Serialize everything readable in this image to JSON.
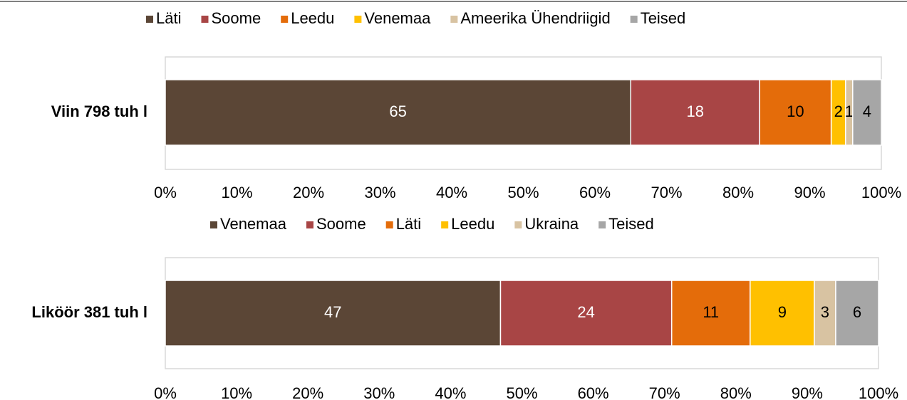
{
  "chart_data": [
    {
      "type": "stacked_barh",
      "categories": [
        "Viin 798 tuh l"
      ],
      "series": [
        {
          "name": "Läti",
          "color": "#5b4636",
          "values": [
            65
          ]
        },
        {
          "name": "Soome",
          "color": "#a84545",
          "values": [
            18
          ]
        },
        {
          "name": "Leedu",
          "color": "#e46c0a",
          "values": [
            10
          ]
        },
        {
          "name": "Venemaa",
          "color": "#ffc000",
          "values": [
            2
          ]
        },
        {
          "name": "Ameerika Ühendriigid",
          "color": "#d8c3a2",
          "values": [
            1
          ]
        },
        {
          "name": "Teised",
          "color": "#a6a6a6",
          "values": [
            4
          ]
        }
      ],
      "xlim": [
        0,
        100
      ],
      "xticks": [
        {
          "value": 0,
          "label": "0%"
        },
        {
          "value": 10,
          "label": "10%"
        },
        {
          "value": 20,
          "label": "20%"
        },
        {
          "value": 30,
          "label": "30%"
        },
        {
          "value": 40,
          "label": "40%"
        },
        {
          "value": 50,
          "label": "50%"
        },
        {
          "value": 60,
          "label": "60%"
        },
        {
          "value": 70,
          "label": "70%"
        },
        {
          "value": 80,
          "label": "80%"
        },
        {
          "value": 90,
          "label": "90%"
        },
        {
          "value": 100,
          "label": "100%"
        }
      ],
      "legend": "top"
    },
    {
      "type": "stacked_barh",
      "categories": [
        "Liköör 381 tuh l"
      ],
      "series": [
        {
          "name": "Venemaa",
          "color": "#5b4636",
          "values": [
            47
          ]
        },
        {
          "name": "Soome",
          "color": "#a84545",
          "values": [
            24
          ]
        },
        {
          "name": "Läti",
          "color": "#e46c0a",
          "values": [
            11
          ]
        },
        {
          "name": "Leedu",
          "color": "#ffc000",
          "values": [
            9
          ]
        },
        {
          "name": "Ukraina",
          "color": "#d8c3a2",
          "values": [
            3
          ]
        },
        {
          "name": "Teised",
          "color": "#a6a6a6",
          "values": [
            6
          ]
        }
      ],
      "xlim": [
        0,
        100
      ],
      "xticks": [
        {
          "value": 0,
          "label": "0%"
        },
        {
          "value": 10,
          "label": "10%"
        },
        {
          "value": 20,
          "label": "20%"
        },
        {
          "value": 30,
          "label": "30%"
        },
        {
          "value": 40,
          "label": "40%"
        },
        {
          "value": 50,
          "label": "50%"
        },
        {
          "value": 60,
          "label": "60%"
        },
        {
          "value": 70,
          "label": "70%"
        },
        {
          "value": 80,
          "label": "80%"
        },
        {
          "value": 90,
          "label": "90%"
        },
        {
          "value": 100,
          "label": "100%"
        }
      ],
      "legend": "top"
    }
  ]
}
